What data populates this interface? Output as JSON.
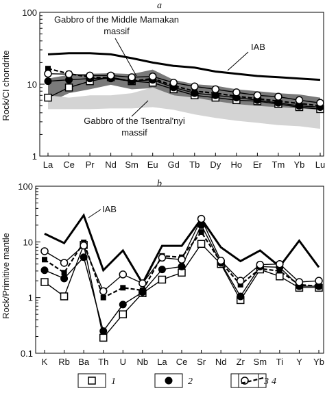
{
  "chart_data": [
    {
      "type": "line",
      "panel_label": "a",
      "ylabel": "Rock/CI chondrite",
      "yscale": "log",
      "ylim": [
        1,
        100
      ],
      "yticks": [
        "1",
        "10",
        "100"
      ],
      "categories": [
        "La",
        "Ce",
        "Pr",
        "Nd",
        "Sm",
        "Eu",
        "Gd",
        "Tb",
        "Dy",
        "Ho",
        "Er",
        "Tm",
        "Yb",
        "Lu"
      ],
      "annotations": {
        "middle_mamakan": [
          "Gabbro of the Middle Mamakan",
          "massif"
        ],
        "tsentralnyi": [
          "Gabbro of the Tsentral'nyi",
          "massif"
        ],
        "iab": "IAB"
      },
      "bands": [
        {
          "id": "middle-mamakan-band",
          "color": "#7a7a7a",
          "lower": [
            5.5,
            7.5,
            8.5,
            9.8,
            8.5,
            8.8,
            7.0,
            6.0,
            5.5,
            5.0,
            4.6,
            4.4,
            4.0,
            3.8
          ],
          "upper": [
            12,
            13.5,
            14,
            14.2,
            13.8,
            16,
            11.5,
            10,
            9.5,
            8.5,
            8.0,
            7.5,
            7.2,
            6.5
          ]
        },
        {
          "id": "tsentralnyi-band",
          "color": "#d4d4d4",
          "lower": [
            4.5,
            4.5,
            4.5,
            4.6,
            4.6,
            4.8,
            4.4,
            3.8,
            3.4,
            3.1,
            2.9,
            2.7,
            2.6,
            2.4
          ],
          "upper": [
            7.0,
            6.5,
            7.0,
            7.0,
            7.5,
            9.0,
            7.0,
            6.5,
            5.8,
            5.3,
            5.0,
            4.8,
            4.6,
            4.4
          ]
        }
      ],
      "series": [
        {
          "id": "IAB",
          "style": "thick",
          "values": [
            26,
            27,
            27,
            26,
            23,
            20,
            18,
            17,
            15,
            14,
            13,
            12.5,
            12,
            11.5
          ]
        },
        {
          "id": "1",
          "marker": "square-open",
          "values": [
            6.5,
            9,
            11,
            12.5,
            11,
            10.5,
            8.5,
            7,
            6.5,
            6,
            5.8,
            5.3,
            4.8,
            4.5
          ]
        },
        {
          "id": "2",
          "marker": "circle-filled",
          "values": [
            11,
            11.5,
            12,
            12,
            11,
            11.5,
            9,
            7.5,
            7,
            6.5,
            6,
            5.5,
            5,
            4.8
          ]
        },
        {
          "id": "3",
          "marker": "circle-open",
          "values": [
            14,
            13.8,
            13.2,
            13.2,
            12.5,
            12.8,
            10.5,
            9.3,
            8.5,
            7.7,
            7,
            6.7,
            6,
            5.5
          ]
        },
        {
          "id": "4",
          "marker": "dashed",
          "values": [
            16.5,
            14,
            12.5,
            12.3,
            11,
            12,
            9.5,
            8,
            7.5,
            6.8,
            6.3,
            5.8,
            5.4,
            5
          ]
        }
      ]
    },
    {
      "type": "line",
      "panel_label": "b",
      "ylabel": "Rock/Primitive mantle",
      "yscale": "log",
      "ylim": [
        0.1,
        100
      ],
      "yticks": [
        "0.1",
        "1",
        "10",
        "100"
      ],
      "categories": [
        "K",
        "Rb",
        "Ba",
        "Th",
        "U",
        "Nb",
        "La",
        "Ce",
        "Sr",
        "Nd",
        "Zr",
        "Sm",
        "Ti",
        "Y",
        "Yb"
      ],
      "annotations": {
        "iab": "IAB"
      },
      "series": [
        {
          "id": "IAB",
          "style": "thick",
          "values": [
            14,
            9.5,
            30,
            3.1,
            7,
            1.8,
            8.5,
            8.5,
            26,
            8,
            4.5,
            7,
            3.6,
            10.5,
            3.5
          ]
        },
        {
          "id": "1",
          "marker": "square-open",
          "values": [
            1.9,
            1.05,
            8.8,
            0.19,
            0.5,
            1.2,
            2.1,
            2.8,
            9.2,
            4.0,
            0.9,
            3.2,
            2.4,
            1.5,
            1.5
          ]
        },
        {
          "id": "2",
          "marker": "circle-filled",
          "values": [
            3.1,
            2.2,
            5.3,
            0.25,
            0.75,
            1.25,
            3.2,
            3.6,
            20,
            4.2,
            1.05,
            3.6,
            3.5,
            1.6,
            1.6
          ]
        },
        {
          "id": "3",
          "marker": "circle-open",
          "values": [
            6.8,
            4.2,
            8.6,
            1.3,
            2.6,
            1.8,
            5.2,
            4.8,
            26,
            4.6,
            2.0,
            3.9,
            4.0,
            1.9,
            2.0
          ]
        },
        {
          "id": "4",
          "marker": "dashed",
          "values": [
            4.8,
            2.8,
            9.8,
            1.0,
            1.5,
            1.35,
            5.6,
            5.3,
            15,
            4.3,
            1.7,
            3.3,
            3.0,
            1.7,
            1.6
          ]
        }
      ]
    }
  ],
  "legend": [
    {
      "label": "1",
      "marker": "square-open"
    },
    {
      "label": "2",
      "marker": "circle-filled"
    },
    {
      "label": "3",
      "marker": "circle-open"
    },
    {
      "label": "4",
      "marker": "dashed"
    }
  ]
}
